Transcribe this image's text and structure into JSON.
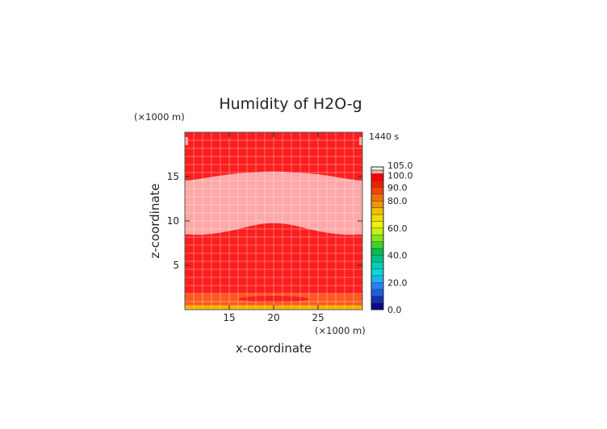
{
  "chart_data": {
    "type": "heatmap",
    "title": "Humidity of H2O-g",
    "xlabel": "x-coordinate",
    "ylabel": "z-coordinate",
    "x_unit": "(×1000 m)",
    "y_unit": "(×1000 m)",
    "time_label": "1440 s",
    "xlim": [
      10,
      30
    ],
    "ylim": [
      0,
      20
    ],
    "x_ticks": [
      15,
      20,
      25
    ],
    "y_ticks": [
      5,
      10,
      15
    ],
    "x_tick_labels": [
      "15",
      "20",
      "25"
    ],
    "y_tick_labels": [
      "5",
      "10",
      "15"
    ],
    "field_description": {
      "background_value_range": [
        90,
        100
      ],
      "saturated_band_value_range": [
        100,
        105
      ],
      "saturated_band_bottom_edge": [
        [
          10,
          8.5
        ],
        [
          12,
          8.4
        ],
        [
          15,
          8.8
        ],
        [
          18,
          9.6
        ],
        [
          20,
          9.8
        ],
        [
          22,
          9.6
        ],
        [
          25,
          8.8
        ],
        [
          28,
          8.4
        ],
        [
          30,
          8.5
        ]
      ],
      "saturated_band_top_edge": [
        [
          10,
          14.5
        ],
        [
          12,
          14.8
        ],
        [
          15,
          15.3
        ],
        [
          18,
          15.5
        ],
        [
          20,
          15.6
        ],
        [
          22,
          15.5
        ],
        [
          25,
          15.3
        ],
        [
          28,
          14.8
        ],
        [
          30,
          14.5
        ]
      ],
      "low_layer_top": 1.8,
      "low_layer_value_range": [
        80,
        90
      ],
      "surface_layer_top": 0.5,
      "surface_layer_value_range": [
        70,
        80
      ],
      "near_surface_red_blob": {
        "x_center": 20,
        "z_center": 1.2,
        "x_halfwidth": 4,
        "z_halfheight": 0.35
      }
    },
    "colorbar": {
      "levels": [
        0,
        5,
        10,
        15,
        20,
        25,
        30,
        35,
        40,
        45,
        50,
        55,
        60,
        65,
        70,
        75,
        80,
        85,
        90,
        95,
        100,
        105
      ],
      "labels": [
        "0.0",
        "20.0",
        "40.0",
        "60.0",
        "80.0",
        "90.0",
        "100.0",
        "105.0"
      ],
      "label_values": [
        0,
        20,
        40,
        60,
        80,
        90,
        100,
        105
      ],
      "colors": [
        "#0a0a8c",
        "#1232b4",
        "#1e5adc",
        "#2a82f0",
        "#1eb4f0",
        "#00dcdc",
        "#00d2b4",
        "#00be8c",
        "#00be50",
        "#3cd228",
        "#82e61e",
        "#c8f014",
        "#f0f000",
        "#f0dc00",
        "#f0be00",
        "#f09600",
        "#f06e00",
        "#f04600",
        "#f01e00",
        "#ff0000",
        "#ffaaaa"
      ],
      "top_color": "#ffffff"
    },
    "colors": {
      "background": "#ff1e1e",
      "saturated": "#ffa8a8",
      "low_layer": "#ff5a1e",
      "surface_layer": "#f5b400",
      "grid": "#ffffff"
    }
  }
}
